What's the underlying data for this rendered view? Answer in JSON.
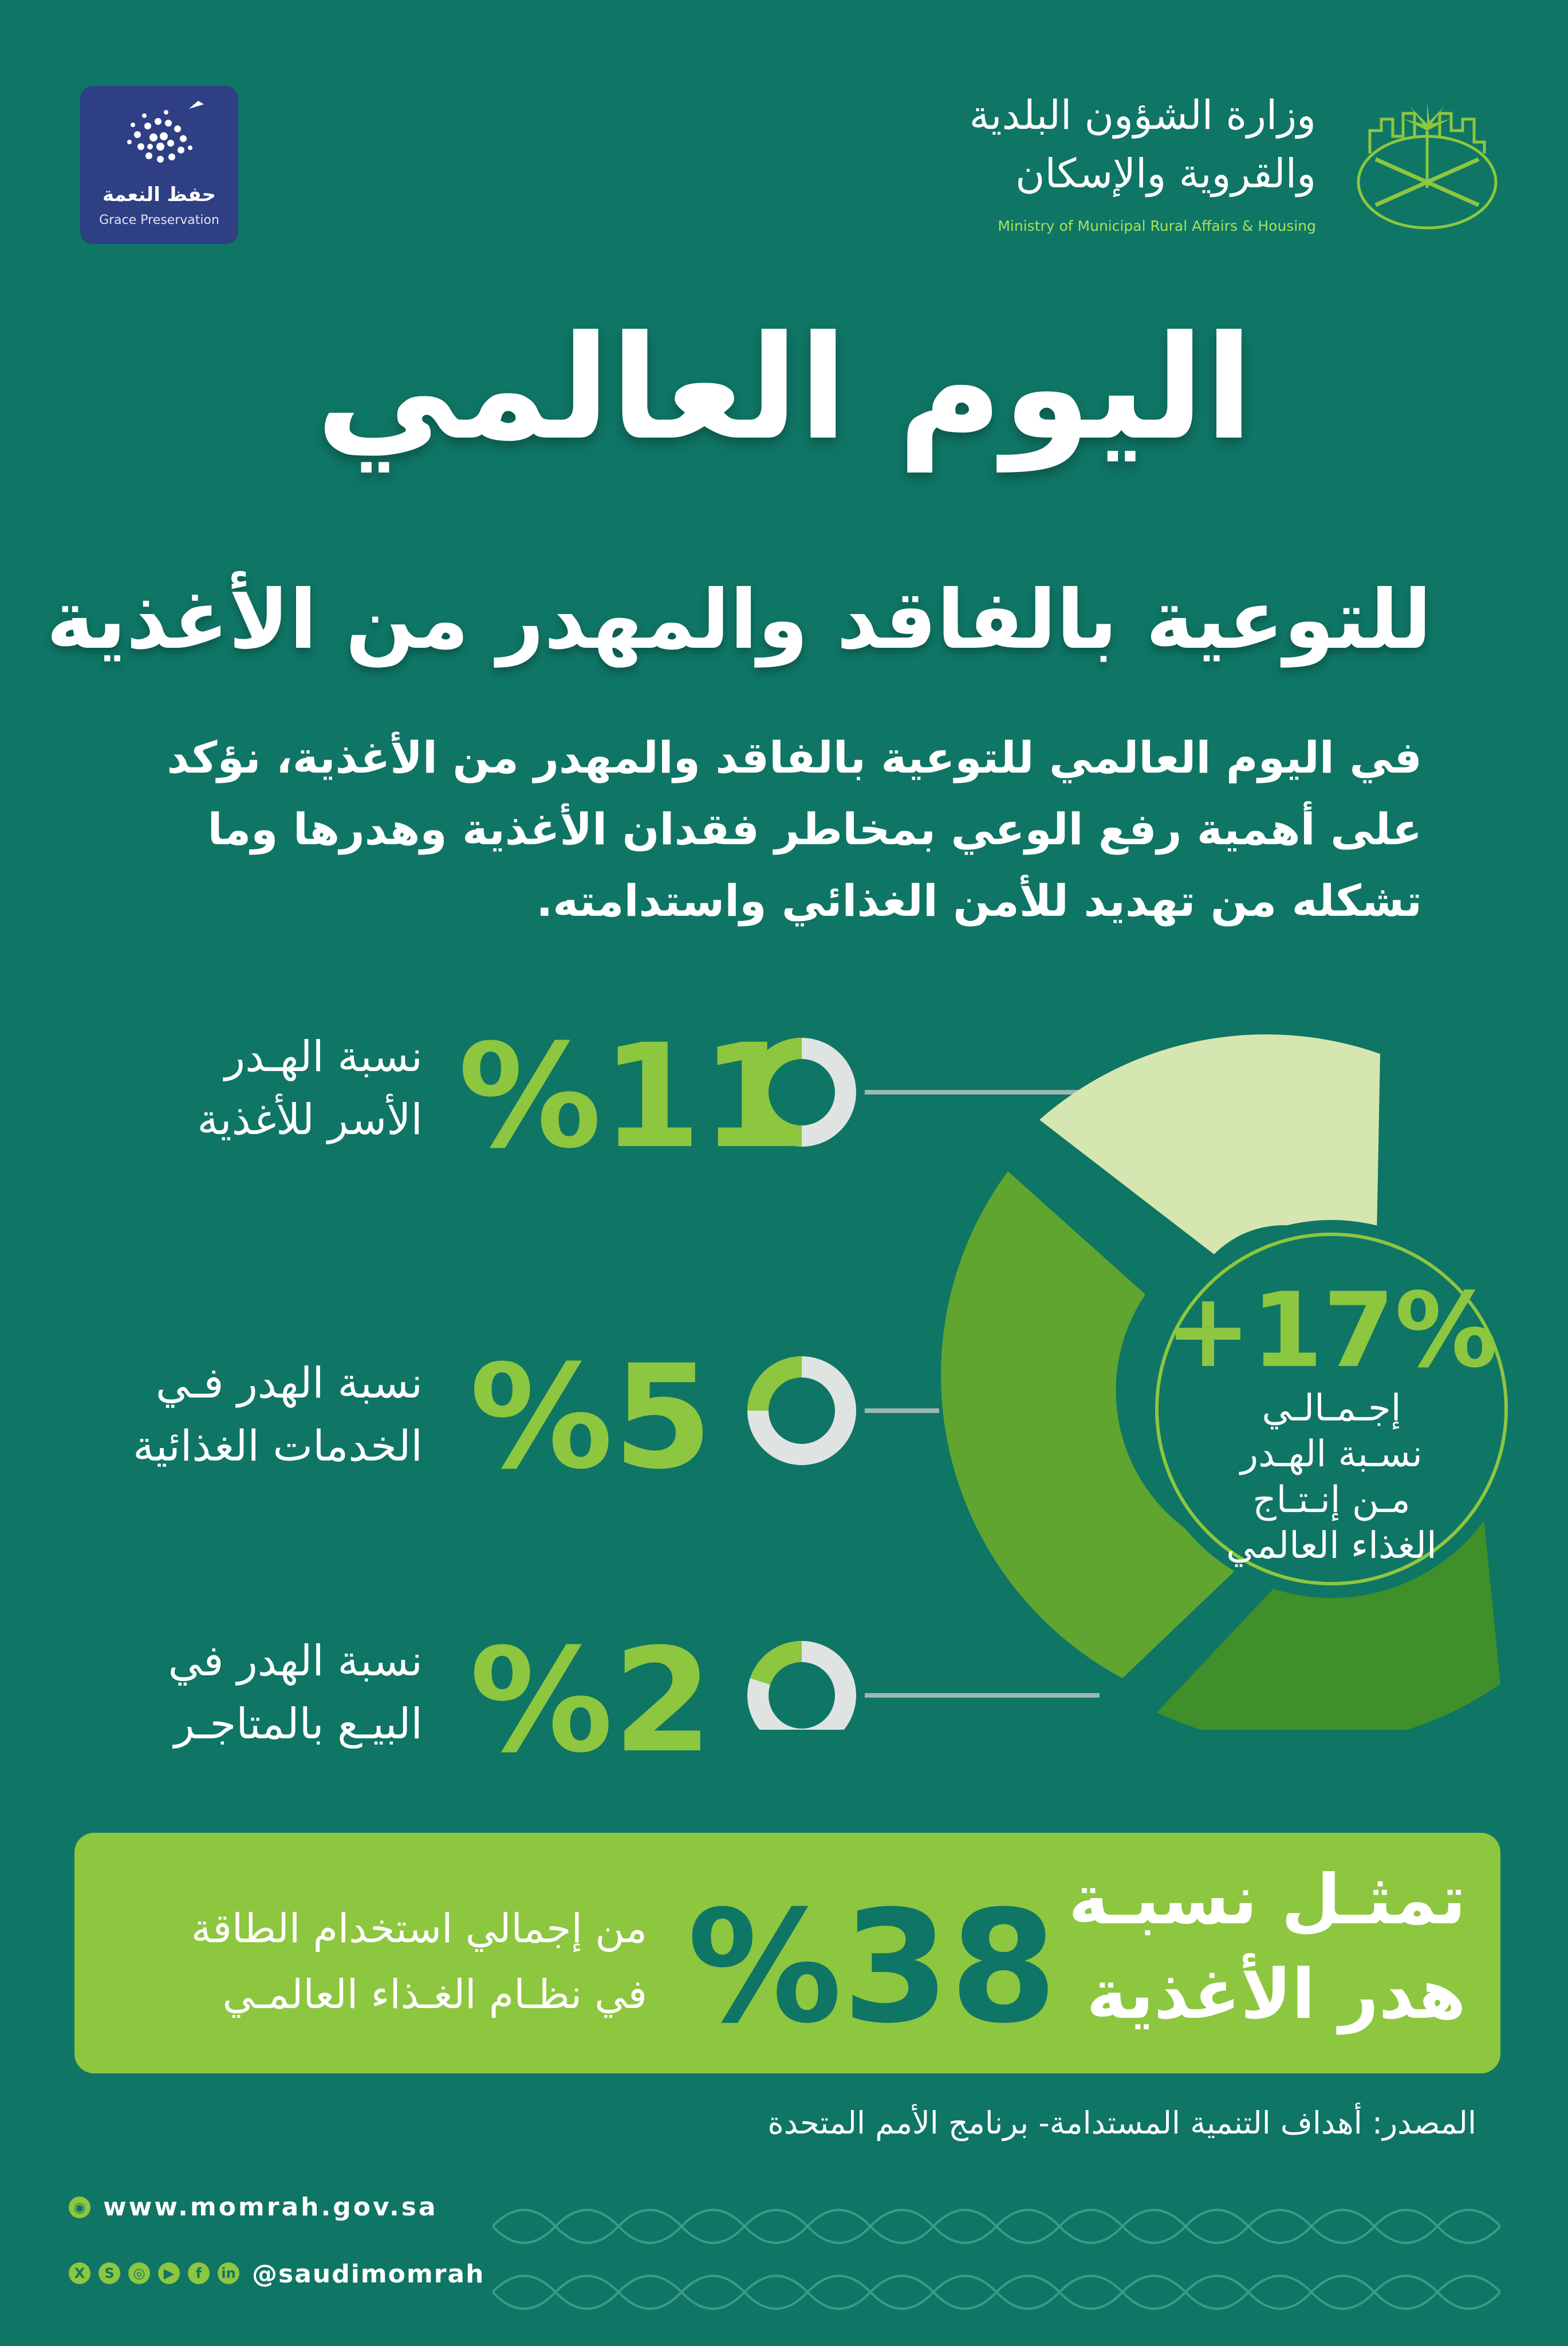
{
  "header": {
    "grace_logo": {
      "arabic": "حفظ النعمة",
      "english": "Grace Preservation"
    },
    "ministry": {
      "name_ar_line1": "وزارة الشؤون البلدية",
      "name_ar_line2": "والقروية والإسكان",
      "name_en": "Ministry of Municipal Rural Affairs & Housing",
      "emblem_icon": "saudi-palm-swords-emblem-icon"
    }
  },
  "title": {
    "main": "اليوم العالمي",
    "sub": "للتوعية بالفاقد والمهدر من الأغذية"
  },
  "intro": {
    "line1": "في اليوم العالمي للتوعية بالفاقد والمهدر من الأغذية، نؤكد",
    "line2": "على أهمية رفع الوعي بمخاطر فقدان الأغذية وهدرها وما",
    "line3": "تشكله من تهديد للأمن الغذائي واستدامته."
  },
  "stats": [
    {
      "label_line1": "نسبة الهـدر",
      "label_line2": "الأسر للأغذية",
      "value": "%11",
      "fraction": 0.11
    },
    {
      "label_line1": "نسبة الهدر فـي",
      "label_line2": "الخدمات الغذائية",
      "value": "%5",
      "fraction": 0.05
    },
    {
      "label_line1": "نسبة الهدر في",
      "label_line2": "البيـع بالمتاجـر",
      "value": "%2",
      "fraction": 0.02
    }
  ],
  "total": {
    "value": "+17%",
    "label_line1": "إجـمـالـي",
    "label_line2": "نسـبة الهـدر",
    "label_line3": "مـن إنـتـاج",
    "label_line4": "الغذاء العالمي"
  },
  "highlight": {
    "title_line1": "تمثـل نسبـة",
    "title_line2": "هدر الأغذية",
    "value": "%38",
    "desc_line1": "من إجمالي استخدام الطاقة",
    "desc_line2": "في نظـام الغـذاء العالمـي"
  },
  "source": "المصدر: أهداف التنمية المستدامة- برنامج الأمم المتحدة",
  "footer": {
    "website": "www.momrah.gov.sa",
    "handle": "@saudimomrah",
    "social_icons": [
      "x-icon",
      "snapchat-icon",
      "instagram-icon",
      "youtube-icon",
      "facebook-icon",
      "linkedin-icon"
    ],
    "icon_glyphs": [
      "X",
      "S",
      "◎",
      "▶",
      "f",
      "in"
    ]
  },
  "colors": {
    "background": "#0f7565",
    "accent_green": "#8dc63f",
    "light_green": "#d6e6b0",
    "mid_green": "#5fa52f",
    "dark_green": "#3f8f2a",
    "ring_gray": "#dfe4e3",
    "navy": "#2e3f84"
  }
}
